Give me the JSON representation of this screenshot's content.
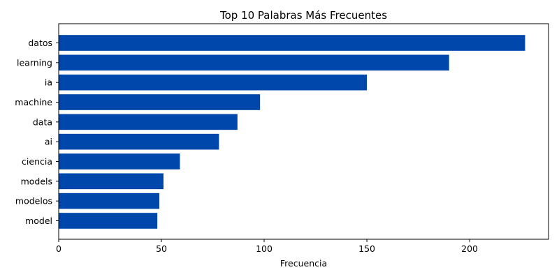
{
  "chart_data": {
    "type": "bar",
    "orientation": "horizontal",
    "title": "Top 10 Palabras Más Frecuentes",
    "xlabel": "Frecuencia",
    "ylabel": "",
    "categories": [
      "datos",
      "learning",
      "ia",
      "machine",
      "data",
      "ai",
      "ciencia",
      "models",
      "modelos",
      "model"
    ],
    "values": [
      227,
      190,
      150,
      98,
      87,
      78,
      59,
      51,
      49,
      48
    ],
    "xlim": [
      0,
      238.4
    ],
    "xticks": [
      0,
      50,
      100,
      150,
      200
    ],
    "grid": false,
    "bar_color": "#0047ab"
  }
}
